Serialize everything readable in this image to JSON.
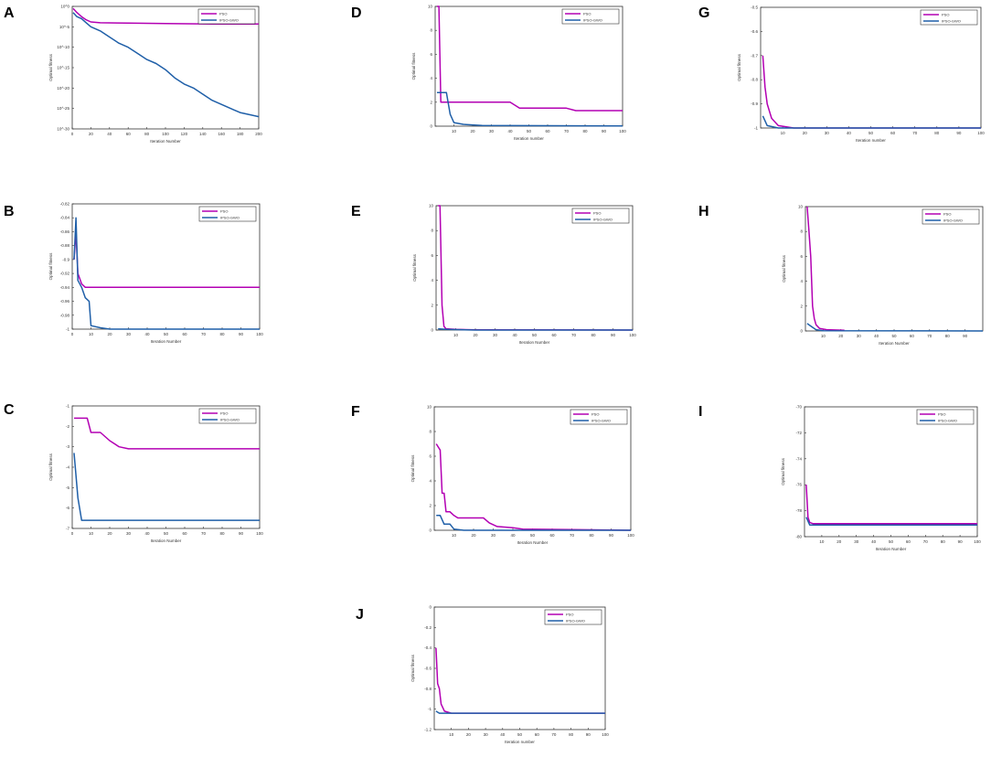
{
  "colors": {
    "pso": "#b300b3",
    "ipso": "#1f5fa8",
    "axis": "#333333"
  },
  "chart_data": [
    {
      "panel": "A",
      "type": "line",
      "ylabel": "Optimal fitness",
      "xlabel": "Iteration Number",
      "ylog": true,
      "xlim": [
        0,
        200
      ],
      "ylim": [
        -30,
        0
      ],
      "xticks": [
        0,
        20,
        40,
        60,
        80,
        100,
        120,
        140,
        160,
        180,
        200
      ],
      "yticks": [
        0,
        -5,
        -10,
        -15,
        -20,
        -25,
        -30
      ],
      "yticklabels": [
        "10^0",
        "10^-5",
        "10^-10",
        "10^-15",
        "10^-20",
        "10^-25",
        "10^-30"
      ],
      "legend": [
        "PSO",
        "IPSO-GWO"
      ],
      "series": [
        {
          "name": "PSO",
          "points": [
            [
              1,
              -0.5
            ],
            [
              5,
              -1.5
            ],
            [
              10,
              -2.5
            ],
            [
              15,
              -3.3
            ],
            [
              20,
              -3.8
            ],
            [
              30,
              -4.0
            ],
            [
              60,
              -4.1
            ],
            [
              100,
              -4.2
            ],
            [
              150,
              -4.3
            ],
            [
              200,
              -4.3
            ]
          ]
        },
        {
          "name": "IPSO-GWO",
          "points": [
            [
              1,
              -1.5
            ],
            [
              5,
              -2.5
            ],
            [
              10,
              -3.0
            ],
            [
              15,
              -4.0
            ],
            [
              20,
              -5.0
            ],
            [
              25,
              -5.5
            ],
            [
              30,
              -6.0
            ],
            [
              40,
              -7.5
            ],
            [
              50,
              -9.0
            ],
            [
              60,
              -10.0
            ],
            [
              70,
              -11.5
            ],
            [
              80,
              -13.0
            ],
            [
              90,
              -14.0
            ],
            [
              100,
              -15.5
            ],
            [
              110,
              -17.5
            ],
            [
              120,
              -19.0
            ],
            [
              130,
              -20.0
            ],
            [
              140,
              -21.5
            ],
            [
              150,
              -23.0
            ],
            [
              160,
              -24.0
            ],
            [
              170,
              -25.0
            ],
            [
              180,
              -26.0
            ],
            [
              190,
              -26.5
            ],
            [
              200,
              -27.0
            ]
          ]
        }
      ]
    },
    {
      "panel": "B",
      "type": "line",
      "ylabel": "Optimal fitness",
      "xlabel": "Iteration Number",
      "xlim": [
        0,
        100
      ],
      "ylim": [
        -1,
        -0.82
      ],
      "xticks": [
        0,
        10,
        20,
        30,
        40,
        50,
        60,
        70,
        80,
        90,
        100
      ],
      "yticks": [
        -0.82,
        -0.84,
        -0.86,
        -0.88,
        -0.9,
        -0.92,
        -0.94,
        -0.96,
        -0.98,
        -1
      ],
      "legend": [
        "PSO",
        "IPSO-GWO"
      ],
      "series": [
        {
          "name": "PSO",
          "points": [
            [
              1,
              -0.9
            ],
            [
              2,
              -0.86
            ],
            [
              3,
              -0.92
            ],
            [
              5,
              -0.935
            ],
            [
              7,
              -0.94
            ],
            [
              100,
              -0.94
            ]
          ]
        },
        {
          "name": "IPSO-GWO",
          "points": [
            [
              1,
              -0.9
            ],
            [
              2,
              -0.84
            ],
            [
              3,
              -0.93
            ],
            [
              5,
              -0.94
            ],
            [
              7,
              -0.955
            ],
            [
              9,
              -0.96
            ],
            [
              10,
              -0.995
            ],
            [
              15,
              -0.998
            ],
            [
              20,
              -1
            ],
            [
              100,
              -1
            ]
          ]
        }
      ]
    },
    {
      "panel": "C",
      "type": "line",
      "ylabel": "Optimal fitness",
      "xlabel": "Iteration Number",
      "xlim": [
        0,
        100
      ],
      "ylim": [
        -7,
        -1
      ],
      "xticks": [
        0,
        10,
        20,
        30,
        40,
        50,
        60,
        70,
        80,
        90,
        100
      ],
      "yticks": [
        -1,
        -2,
        -3,
        -4,
        -5,
        -6,
        -7
      ],
      "legend": [
        "PSO",
        "IPSO-GWO"
      ],
      "series": [
        {
          "name": "PSO",
          "points": [
            [
              1,
              -1.6
            ],
            [
              8,
              -1.6
            ],
            [
              10,
              -2.3
            ],
            [
              15,
              -2.3
            ],
            [
              20,
              -2.7
            ],
            [
              25,
              -3.0
            ],
            [
              30,
              -3.1
            ],
            [
              100,
              -3.1
            ]
          ]
        },
        {
          "name": "IPSO-GWO",
          "points": [
            [
              1,
              -3.3
            ],
            [
              3,
              -5.5
            ],
            [
              5,
              -6.6
            ],
            [
              100,
              -6.6
            ]
          ]
        }
      ]
    },
    {
      "panel": "D",
      "type": "line",
      "ylabel": "Optimal fitness",
      "xlabel": "Iteration number",
      "xlim": [
        0,
        100
      ],
      "ylim": [
        0,
        10
      ],
      "xticks": [
        10,
        20,
        30,
        40,
        50,
        60,
        70,
        80,
        90,
        100
      ],
      "yticks": [
        0,
        2,
        4,
        6,
        8,
        10
      ],
      "legend": [
        "PSO",
        "IPSO-GWO"
      ],
      "series": [
        {
          "name": "PSO",
          "points": [
            [
              1,
              10
            ],
            [
              2,
              10
            ],
            [
              3,
              2
            ],
            [
              40,
              2
            ],
            [
              45,
              1.5
            ],
            [
              70,
              1.5
            ],
            [
              75,
              1.3
            ],
            [
              100,
              1.3
            ]
          ]
        },
        {
          "name": "IPSO-GWO",
          "points": [
            [
              1,
              2.8
            ],
            [
              6,
              2.8
            ],
            [
              8,
              1
            ],
            [
              10,
              0.3
            ],
            [
              15,
              0.15
            ],
            [
              25,
              0.05
            ],
            [
              100,
              0.02
            ]
          ]
        }
      ]
    },
    {
      "panel": "E",
      "type": "line",
      "ylabel": "Optimal fitness",
      "xlabel": "Iteration Number",
      "xlim": [
        0,
        100
      ],
      "ylim": [
        0,
        10
      ],
      "xticks": [
        10,
        20,
        30,
        40,
        50,
        60,
        70,
        80,
        90,
        100
      ],
      "yticks": [
        0,
        2,
        4,
        6,
        8,
        10
      ],
      "legend": [
        "PSO",
        "IPSO-GWO"
      ],
      "series": [
        {
          "name": "PSO",
          "points": [
            [
              1,
              10
            ],
            [
              2,
              10
            ],
            [
              3,
              2
            ],
            [
              4,
              0.3
            ],
            [
              5,
              0.1
            ],
            [
              10,
              0.05
            ],
            [
              20,
              0.02
            ],
            [
              100,
              0
            ]
          ]
        },
        {
          "name": "IPSO-GWO",
          "points": [
            [
              1,
              0.1
            ],
            [
              5,
              0.05
            ],
            [
              20,
              0
            ],
            [
              100,
              0
            ]
          ]
        }
      ]
    },
    {
      "panel": "F",
      "type": "line",
      "ylabel": "Optimal fitness",
      "xlabel": "Iteration Number",
      "xlim": [
        0,
        100
      ],
      "ylim": [
        0,
        10
      ],
      "xticks": [
        10,
        20,
        30,
        40,
        50,
        60,
        70,
        80,
        90,
        100
      ],
      "yticks": [
        0,
        2,
        4,
        6,
        8,
        10
      ],
      "legend": [
        "PSO",
        "IPSO-GWO"
      ],
      "series": [
        {
          "name": "PSO",
          "points": [
            [
              1,
              7
            ],
            [
              3,
              6.5
            ],
            [
              4,
              3
            ],
            [
              5,
              3
            ],
            [
              6,
              1.5
            ],
            [
              8,
              1.5
            ],
            [
              10,
              1.2
            ],
            [
              12,
              1
            ],
            [
              25,
              1
            ],
            [
              28,
              0.6
            ],
            [
              32,
              0.3
            ],
            [
              40,
              0.2
            ],
            [
              45,
              0.1
            ],
            [
              100,
              0
            ]
          ]
        },
        {
          "name": "IPSO-GWO",
          "points": [
            [
              1,
              1.2
            ],
            [
              3,
              1.2
            ],
            [
              5,
              0.5
            ],
            [
              8,
              0.5
            ],
            [
              10,
              0.1
            ],
            [
              15,
              0
            ],
            [
              100,
              0
            ]
          ]
        }
      ]
    },
    {
      "panel": "G",
      "type": "line",
      "ylabel": "Optimal fitness",
      "xlabel": "Iteration number",
      "xlim": [
        0,
        100
      ],
      "ylim": [
        -1,
        -0.5
      ],
      "xticks": [
        10,
        20,
        30,
        40,
        50,
        60,
        70,
        80,
        90,
        100
      ],
      "yticks": [
        -0.5,
        -0.6,
        -0.7,
        -0.8,
        -0.9,
        -1
      ],
      "legend": [
        "PSO",
        "IPSO-GWO"
      ],
      "series": [
        {
          "name": "PSO",
          "points": [
            [
              1,
              -0.7
            ],
            [
              2,
              -0.83
            ],
            [
              3,
              -0.9
            ],
            [
              5,
              -0.96
            ],
            [
              8,
              -0.99
            ],
            [
              15,
              -1
            ],
            [
              100,
              -1
            ]
          ]
        },
        {
          "name": "IPSO-GWO",
          "points": [
            [
              1,
              -0.95
            ],
            [
              3,
              -0.99
            ],
            [
              8,
              -1
            ],
            [
              100,
              -1
            ]
          ]
        }
      ]
    },
    {
      "panel": "H",
      "type": "line",
      "ylabel": "Optimal fitness",
      "xlabel": "Iteration Number",
      "xlim": [
        0,
        100
      ],
      "ylim": [
        0,
        10
      ],
      "xticks": [
        10,
        20,
        30,
        40,
        50,
        60,
        70,
        80,
        90
      ],
      "yticks": [
        0,
        2,
        4,
        6,
        8,
        10
      ],
      "legend": [
        "PSO",
        "IPSO-GWO"
      ],
      "series": [
        {
          "name": "PSO",
          "points": [
            [
              1,
              10
            ],
            [
              2,
              8
            ],
            [
              3,
              6
            ],
            [
              4,
              2
            ],
            [
              5,
              1
            ],
            [
              6,
              0.5
            ],
            [
              8,
              0.2
            ],
            [
              12,
              0.1
            ],
            [
              22,
              0.05
            ]
          ]
        },
        {
          "name": "IPSO-GWO",
          "points": [
            [
              1,
              0.6
            ],
            [
              3,
              0.4
            ],
            [
              6,
              0.1
            ],
            [
              10,
              0.02
            ],
            [
              100,
              0
            ]
          ]
        }
      ]
    },
    {
      "panel": "I",
      "type": "line",
      "ylabel": "Optimal fitness",
      "xlabel": "Iteration Number",
      "xlim": [
        0,
        100
      ],
      "ylim": [
        -80,
        -70
      ],
      "xticks": [
        10,
        20,
        30,
        40,
        50,
        60,
        70,
        80,
        90,
        100
      ],
      "yticks": [
        -70,
        -72,
        -74,
        -76,
        -78,
        -80
      ],
      "legend": [
        "PSO",
        "IPSO-GWO"
      ],
      "series": [
        {
          "name": "PSO",
          "points": [
            [
              1,
              -76
            ],
            [
              2,
              -78.5
            ],
            [
              3,
              -78.9
            ],
            [
              5,
              -79
            ],
            [
              10,
              -79
            ],
            [
              100,
              -79
            ]
          ]
        },
        {
          "name": "IPSO-GWO",
          "points": [
            [
              1,
              -78.5
            ],
            [
              3,
              -79.1
            ],
            [
              10,
              -79.1
            ],
            [
              100,
              -79.1
            ]
          ]
        }
      ]
    },
    {
      "panel": "J",
      "type": "line",
      "ylabel": "Optimal fitness",
      "xlabel": "Iteration number",
      "xlim": [
        0,
        100
      ],
      "ylim": [
        -1.2,
        0
      ],
      "xticks": [
        10,
        20,
        30,
        40,
        50,
        60,
        70,
        80,
        90,
        100
      ],
      "yticks": [
        0,
        -0.2,
        -0.4,
        -0.6,
        -0.8,
        -1,
        -1.2
      ],
      "legend": [
        "PSO",
        "IPSO-GWO"
      ],
      "series": [
        {
          "name": "PSO",
          "points": [
            [
              1,
              -0.4
            ],
            [
              2,
              -0.75
            ],
            [
              3,
              -0.8
            ],
            [
              4,
              -0.95
            ],
            [
              6,
              -1.02
            ],
            [
              10,
              -1.04
            ],
            [
              100,
              -1.04
            ]
          ]
        },
        {
          "name": "IPSO-GWO",
          "points": [
            [
              1,
              -1.02
            ],
            [
              3,
              -1.04
            ],
            [
              100,
              -1.04
            ]
          ]
        }
      ]
    }
  ]
}
